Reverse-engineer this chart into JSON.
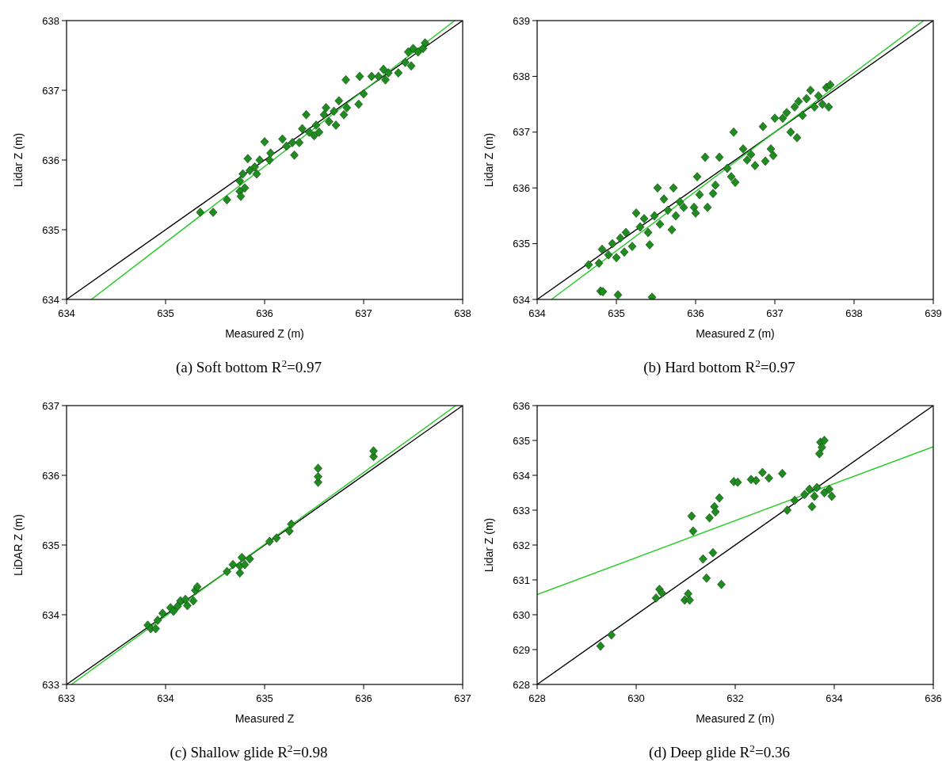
{
  "chart_data": [
    {
      "type": "scatter",
      "title": "(a) Soft bottom R$^{2}$=0.97",
      "xlabel": "Measured Z (m)",
      "ylabel": "Lidar Z (m)",
      "xlim": [
        634,
        638
      ],
      "ylim": [
        634,
        638
      ],
      "xticks": [
        634,
        635,
        636,
        637,
        638
      ],
      "yticks": [
        634,
        635,
        636,
        637,
        638
      ],
      "series": [
        {
          "marker": "diamond",
          "color": "#1e8c1e",
          "x": [
            635.35,
            635.48,
            635.62,
            635.75,
            635.76,
            635.75,
            635.8,
            635.78,
            635.83,
            635.85,
            635.9,
            635.92,
            635.95,
            636.0,
            636.05,
            636.06,
            636.18,
            636.22,
            636.28,
            636.3,
            636.35,
            636.38,
            636.42,
            636.45,
            636.5,
            636.52,
            636.55,
            636.6,
            636.62,
            636.65,
            636.7,
            636.72,
            636.75,
            636.8,
            636.82,
            636.83,
            636.95,
            636.96,
            637.0,
            637.08,
            637.15,
            637.2,
            637.22,
            637.25,
            637.35,
            637.42,
            637.45,
            637.5,
            637.48,
            637.55,
            637.6,
            637.62
          ],
          "values": [
            635.25,
            635.25,
            635.43,
            635.55,
            635.48,
            635.7,
            635.6,
            635.8,
            636.02,
            635.85,
            635.9,
            635.8,
            636.0,
            636.26,
            636.0,
            636.1,
            636.3,
            636.2,
            636.25,
            636.07,
            636.25,
            636.45,
            636.65,
            636.4,
            636.35,
            636.5,
            636.4,
            636.65,
            636.75,
            636.55,
            636.7,
            636.5,
            636.85,
            636.65,
            637.15,
            636.75,
            636.8,
            637.2,
            636.95,
            637.2,
            637.2,
            637.3,
            637.15,
            637.25,
            637.25,
            637.4,
            637.55,
            637.6,
            637.35,
            637.55,
            637.6,
            637.68
          ]
        },
        {
          "type": "line",
          "color": "#000000",
          "x": [
            634,
            638
          ],
          "values": [
            634,
            638
          ]
        },
        {
          "type": "line",
          "color": "#22cc22",
          "x": [
            634.25,
            637.92
          ],
          "values": [
            634,
            638
          ]
        }
      ]
    },
    {
      "type": "scatter",
      "title": "(b) Hard bottom R$^{2}$=0.97",
      "xlabel": "Measured Z (m)",
      "ylabel": "Lidar Z (m)",
      "xlim": [
        634,
        639
      ],
      "ylim": [
        634,
        639
      ],
      "xticks": [
        634,
        635,
        636,
        637,
        638,
        639
      ],
      "yticks": [
        634,
        635,
        636,
        637,
        638,
        639
      ],
      "series": [
        {
          "marker": "diamond",
          "color": "#1e8c1e",
          "x": [
            634.65,
            634.8,
            634.83,
            634.78,
            634.82,
            634.9,
            634.95,
            635.0,
            635.02,
            635.05,
            635.1,
            635.12,
            635.2,
            635.25,
            635.3,
            635.35,
            635.4,
            635.42,
            635.45,
            635.48,
            635.52,
            635.55,
            635.6,
            635.65,
            635.7,
            635.72,
            635.75,
            635.8,
            635.85,
            635.98,
            636.0,
            636.02,
            636.05,
            636.12,
            636.15,
            636.22,
            636.25,
            636.3,
            636.4,
            636.45,
            636.48,
            636.5,
            636.6,
            636.65,
            636.7,
            636.75,
            636.85,
            636.88,
            636.95,
            636.98,
            637.0,
            637.1,
            637.15,
            637.2,
            637.25,
            637.28,
            637.3,
            637.35,
            637.4,
            637.45,
            637.5,
            637.55,
            637.6,
            637.65,
            637.68,
            637.7
          ],
          "values": [
            634.62,
            634.15,
            634.14,
            634.65,
            634.9,
            634.8,
            635.0,
            634.75,
            634.08,
            635.1,
            634.85,
            635.2,
            634.95,
            635.55,
            635.3,
            635.45,
            635.2,
            634.98,
            634.04,
            635.5,
            636.0,
            635.35,
            635.8,
            635.6,
            635.25,
            636.0,
            635.5,
            635.75,
            635.65,
            635.65,
            635.55,
            636.2,
            635.88,
            636.55,
            635.65,
            635.9,
            636.05,
            636.55,
            636.35,
            636.2,
            637.0,
            636.1,
            636.7,
            636.5,
            636.6,
            636.4,
            637.1,
            636.48,
            636.7,
            636.58,
            637.25,
            637.25,
            637.35,
            637.0,
            637.45,
            636.9,
            637.55,
            637.3,
            637.6,
            637.75,
            637.45,
            637.65,
            637.5,
            637.8,
            637.45,
            637.85
          ]
        },
        {
          "type": "line",
          "color": "#000000",
          "x": [
            634,
            639
          ],
          "values": [
            634,
            639
          ]
        },
        {
          "type": "line",
          "color": "#22cc22",
          "x": [
            634.18,
            638.88
          ],
          "values": [
            634,
            639
          ]
        }
      ]
    },
    {
      "type": "scatter",
      "title": "(c) Shallow glide R$^{2}$=0.98",
      "xlabel": "Measured Z",
      "ylabel": "LiDAR Z (m)",
      "xlim": [
        633,
        637
      ],
      "ylim": [
        633,
        637
      ],
      "xticks": [
        633,
        634,
        635,
        636,
        637
      ],
      "yticks": [
        633,
        634,
        635,
        636,
        637
      ],
      "series": [
        {
          "marker": "diamond",
          "color": "#1e8c1e",
          "x": [
            633.82,
            633.85,
            633.9,
            633.92,
            633.97,
            634.05,
            634.08,
            634.12,
            634.15,
            634.2,
            634.22,
            634.28,
            634.3,
            634.32,
            634.62,
            634.68,
            634.75,
            634.75,
            634.77,
            634.8,
            634.85,
            635.05,
            635.12,
            635.25,
            635.27,
            635.54,
            635.54,
            635.54,
            636.1,
            636.1
          ],
          "values": [
            633.85,
            633.8,
            633.8,
            633.92,
            634.02,
            634.1,
            634.05,
            634.12,
            634.2,
            634.22,
            634.13,
            634.2,
            634.35,
            634.4,
            634.62,
            634.72,
            634.6,
            634.7,
            634.82,
            634.72,
            634.8,
            635.05,
            635.1,
            635.2,
            635.3,
            635.9,
            635.98,
            636.1,
            636.27,
            636.35
          ]
        },
        {
          "type": "line",
          "color": "#000000",
          "x": [
            633,
            637
          ],
          "values": [
            633,
            637
          ]
        },
        {
          "type": "line",
          "color": "#22cc22",
          "x": [
            633.05,
            636.93
          ],
          "values": [
            633,
            637
          ]
        }
      ]
    },
    {
      "type": "scatter",
      "title": "(d) Deep glide R$^{2}$=0.36",
      "xlabel": "Measured Z (m)",
      "ylabel": "Lidar Z (m)",
      "xlim": [
        628,
        636
      ],
      "ylim": [
        628,
        636
      ],
      "xticks": [
        628,
        630,
        632,
        634,
        636
      ],
      "yticks": [
        628,
        629,
        630,
        631,
        632,
        633,
        634,
        635,
        636
      ],
      "series": [
        {
          "marker": "diamond",
          "color": "#1e8c1e",
          "x": [
            629.28,
            629.5,
            630.4,
            630.47,
            630.52,
            630.98,
            631.05,
            631.08,
            631.12,
            631.15,
            631.35,
            631.42,
            631.48,
            631.55,
            631.58,
            631.6,
            631.68,
            631.72,
            631.97,
            632.05,
            632.32,
            632.42,
            632.55,
            632.68,
            632.95,
            633.05,
            633.2,
            633.4,
            633.5,
            633.55,
            633.6,
            633.65,
            633.7,
            633.72,
            633.75,
            633.8,
            633.8,
            633.9,
            633.95
          ],
          "values": [
            629.1,
            629.42,
            630.48,
            630.73,
            630.62,
            630.42,
            630.6,
            630.42,
            632.83,
            632.4,
            631.6,
            631.05,
            632.78,
            631.78,
            633.1,
            632.95,
            633.35,
            630.87,
            633.82,
            633.8,
            633.88,
            633.85,
            634.08,
            633.92,
            634.05,
            633.0,
            633.28,
            633.45,
            633.6,
            633.1,
            633.4,
            633.65,
            634.62,
            634.95,
            634.8,
            635.0,
            633.5,
            633.6,
            633.4
          ]
        },
        {
          "type": "line",
          "color": "#000000",
          "x": [
            628,
            636
          ],
          "values": [
            628,
            636
          ]
        },
        {
          "type": "line",
          "color": "#22cc22",
          "x": [
            628,
            636
          ],
          "values": [
            630.58,
            634.82
          ]
        }
      ]
    }
  ]
}
